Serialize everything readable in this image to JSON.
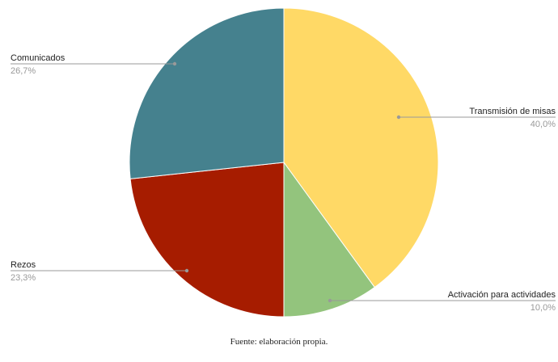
{
  "caption": "Fuente: elaboración propia.",
  "chart_data": {
    "type": "pie",
    "start_angle_deg": 0,
    "direction": "clockwise",
    "slices": [
      {
        "label": "Transmisión de misas",
        "value": 40.0,
        "display": "40,0%",
        "color": "#FFD966",
        "label_side": "right"
      },
      {
        "label": "Activación para actividades",
        "value": 10.0,
        "display": "10,0%",
        "color": "#93C47D",
        "label_side": "right"
      },
      {
        "label": "Rezos",
        "value": 23.3,
        "display": "23,3%",
        "color": "#A61C00",
        "label_side": "left"
      },
      {
        "label": "Comunicados",
        "value": 26.7,
        "display": "26,7%",
        "color": "#45818E",
        "label_side": "left"
      }
    ],
    "legend": "none",
    "label_line_color": "#999999",
    "label_text_color": "#222222",
    "value_text_color": "#999999"
  }
}
